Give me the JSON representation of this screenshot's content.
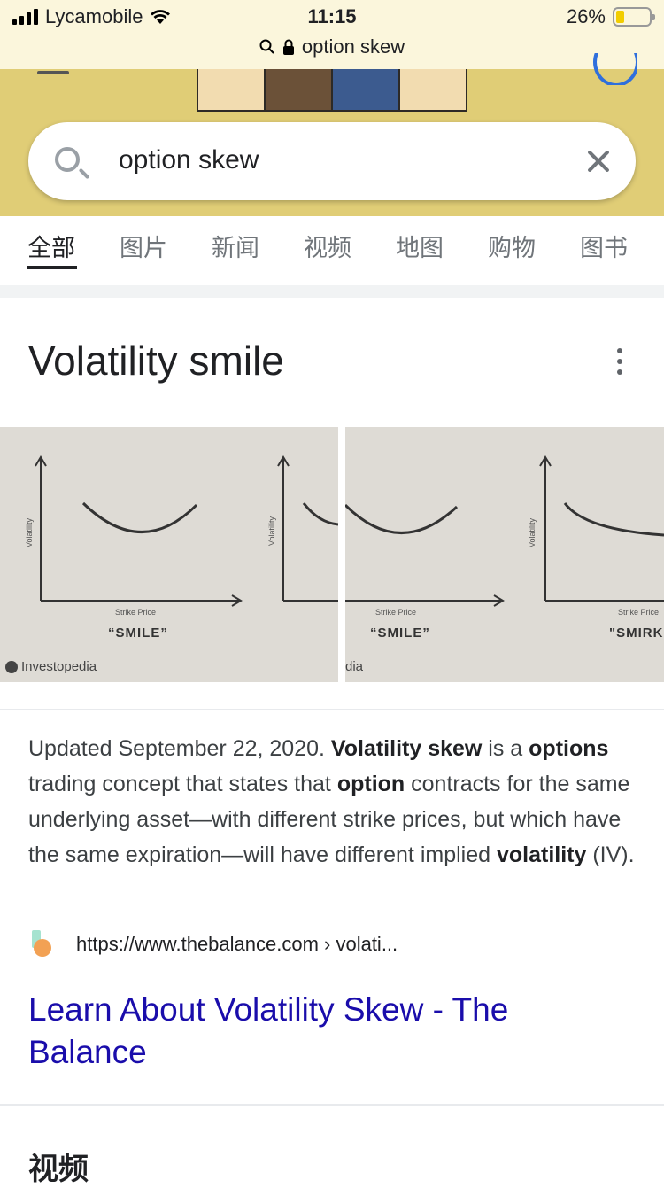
{
  "status_bar": {
    "carrier": "Lycamobile",
    "time": "11:15",
    "battery": "26%",
    "battery_level": 0.26,
    "url_text": "option skew"
  },
  "search": {
    "query": "option skew"
  },
  "tabs": [
    "全部",
    "图片",
    "新闻",
    "视频",
    "地图",
    "购物",
    "图书"
  ],
  "active_tab": 0,
  "card": {
    "title": "Volatility smile",
    "images": [
      {
        "axis_y": "Volatility",
        "axis_x": "Strike Price",
        "caption": "“SMILE”",
        "brand": "Investopedia"
      },
      {
        "axis_y": "Volatility",
        "axis_x": "",
        "caption": "",
        "brand": ""
      },
      {
        "axis_y": "",
        "axis_x": "Strike Price",
        "caption": "“SMILE”",
        "brand": "dia"
      },
      {
        "axis_y": "Volatility",
        "axis_x": "Strike Price",
        "caption": "\"SMIRK",
        "brand": ""
      }
    ]
  },
  "snippet": {
    "date": "Updated September 22, 2020.",
    "parts": [
      {
        "t": " ",
        "b": false
      },
      {
        "t": "Volatility skew",
        "b": true
      },
      {
        "t": " is a ",
        "b": false
      },
      {
        "t": "options",
        "b": true
      },
      {
        "t": " trading concept that states that ",
        "b": false
      },
      {
        "t": "option",
        "b": true
      },
      {
        "t": " contracts for the same underlying asset—with different strike prices, but which have the same expiration—will have different implied ",
        "b": false
      },
      {
        "t": "volatility",
        "b": true
      },
      {
        "t": " (IV).",
        "b": false
      }
    ]
  },
  "source": {
    "url": "https://www.thebalance.com › volati..."
  },
  "result": {
    "title": "Learn About Volatility Skew - The Balance"
  },
  "next_section": {
    "title": "视频"
  },
  "colors": {
    "link": "#1a0dab",
    "accent_blue": "#2f6fdc",
    "doodle_band": "#e0cd76",
    "status_bg": "#fbf6dc"
  }
}
